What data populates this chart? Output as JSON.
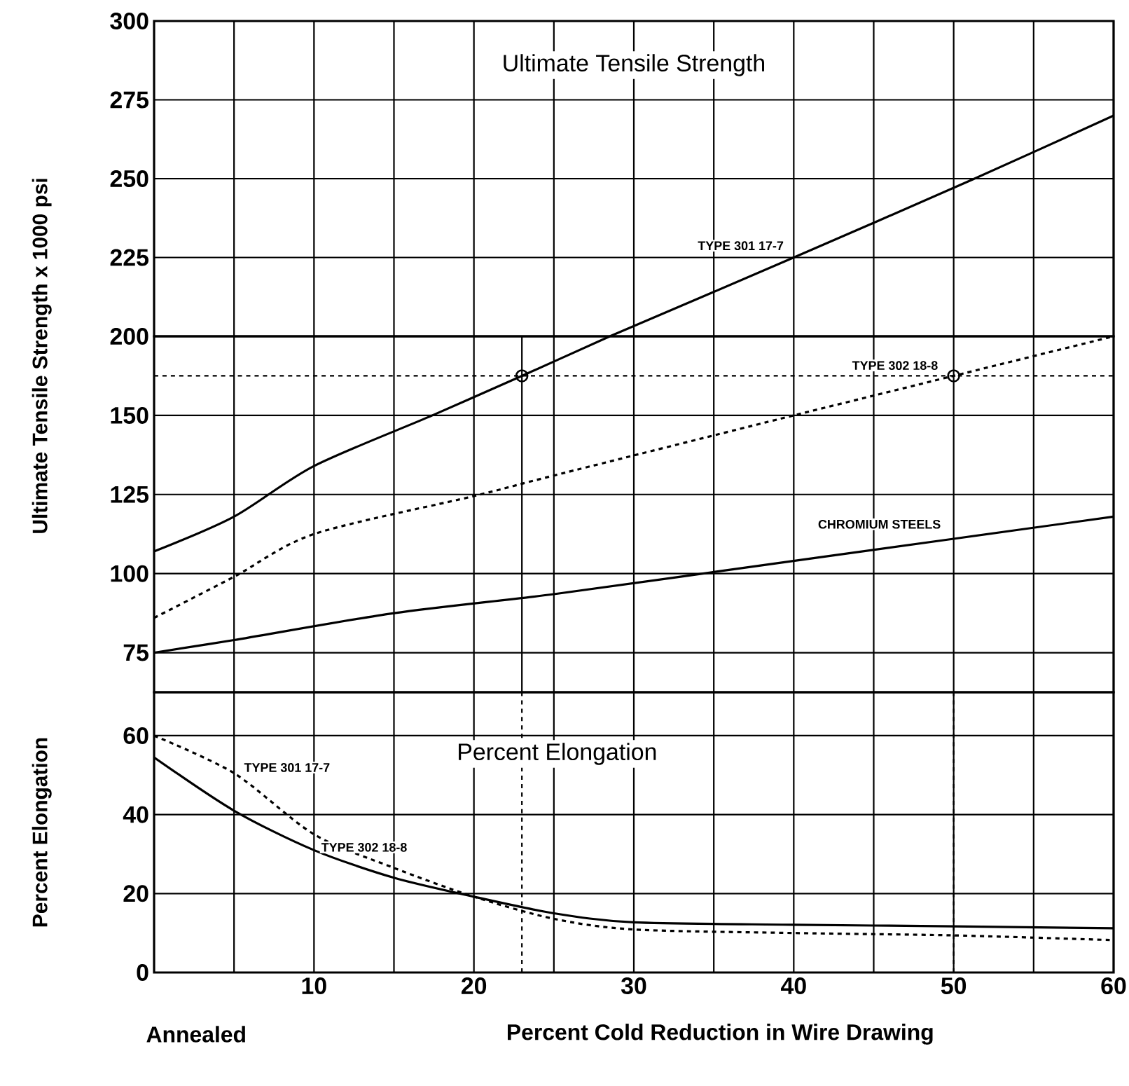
{
  "chart_data": [
    {
      "type": "line",
      "title": "Ultimate Tensile Strength",
      "ylabel": "Ultimate Tensile Strength x 1000 psi",
      "xlim": [
        0,
        60
      ],
      "ylim": [
        200,
        300
      ],
      "xticks": [
        {
          "value": 5,
          "label": null
        },
        10,
        {
          "value": 15,
          "label": null
        },
        20,
        {
          "value": 25,
          "label": null
        },
        30,
        {
          "value": 35,
          "label": null
        },
        40,
        {
          "value": 45,
          "label": null
        },
        50,
        {
          "value": 55,
          "label": null
        },
        60
      ],
      "yticks": [
        200,
        225,
        250,
        275,
        300
      ],
      "grid": true,
      "tick_labels": "y",
      "series": [
        {
          "name": "TYPE 301 17-7",
          "color": "#000000",
          "line_style": "solid",
          "x": [
            28.5,
            40,
            51.3,
            60
          ],
          "values": [
            200,
            225,
            250,
            270
          ]
        }
      ]
    },
    {
      "type": "line",
      "xlim": [
        0,
        60
      ],
      "ylim": [
        62.5,
        175
      ],
      "xticks": [
        {
          "value": 5,
          "label": null
        },
        10,
        {
          "value": 15,
          "label": null
        },
        20,
        {
          "value": 25,
          "label": null
        },
        30,
        {
          "value": 35,
          "label": null
        },
        40,
        {
          "value": 45,
          "label": null
        },
        50,
        {
          "value": 55,
          "label": null
        },
        60
      ],
      "yticks": [
        75,
        100,
        125,
        150
      ],
      "grid": true,
      "tick_labels": "y",
      "series": [
        {
          "color": "#000000",
          "line_style": "solid",
          "x": [
            0,
            5,
            10,
            17.4,
            23,
            28.5
          ],
          "values": [
            107,
            118,
            134,
            150,
            162.5,
            175
          ]
        },
        {
          "name": "TYPE 302 18-8",
          "color": "#000000",
          "line_style": "dashed",
          "x": [
            0,
            5,
            10,
            20,
            25,
            40,
            50,
            60
          ],
          "values": [
            86,
            99,
            112.5,
            124.5,
            131,
            150,
            162.5,
            175
          ]
        },
        {
          "name": "CHROMIUM STEELS",
          "color": "#000000",
          "line_style": "solid",
          "x": [
            0,
            5,
            15,
            25,
            35,
            50,
            60
          ],
          "values": [
            75,
            79,
            87.5,
            93.5,
            100.5,
            111,
            118
          ]
        },
        {
          "type": "scatter",
          "marker": "circle",
          "color": "#000000",
          "x": [
            23,
            50
          ],
          "values": [
            162.5,
            162.5
          ]
        }
      ],
      "ref_lines": [
        {
          "axis": "y",
          "value": 162.5,
          "line_style": "dashed"
        },
        {
          "axis": "x",
          "value": 23,
          "line_style": "solid"
        }
      ]
    },
    {
      "type": "line",
      "title": "Percent Elongation",
      "ylabel": "Percent Elongation",
      "xlabel": "Percent Cold Reduction in Wire Drawing",
      "xlim": [
        0,
        60
      ],
      "ylim": [
        0,
        71
      ],
      "xticks": [
        {
          "value": 5,
          "label": null
        },
        10,
        {
          "value": 15,
          "label": null
        },
        20,
        {
          "value": 25,
          "label": null
        },
        30,
        {
          "value": 35,
          "label": null
        },
        40,
        {
          "value": 45,
          "label": null
        },
        50,
        {
          "value": 55,
          "label": null
        },
        60
      ],
      "yticks": [
        0,
        20,
        40,
        60
      ],
      "grid": true,
      "series": [
        {
          "name": "TYPE 301 17-7",
          "color": "#000000",
          "line_style": "dashed",
          "x": [
            0,
            5,
            10,
            15,
            20,
            25,
            30,
            40,
            50,
            60
          ],
          "values": [
            60,
            50.5,
            35,
            26.5,
            19.2,
            13.6,
            10.9,
            10,
            9.4,
            8.2
          ]
        },
        {
          "name": "TYPE 302 18-8",
          "color": "#000000",
          "line_style": "solid",
          "x": [
            0,
            5,
            10,
            15,
            20,
            25,
            30,
            40,
            50,
            60
          ],
          "values": [
            54.5,
            41,
            31,
            24,
            19.2,
            15,
            12.7,
            12.1,
            11.7,
            11.2
          ]
        }
      ],
      "ref_lines": [
        {
          "axis": "x",
          "value": 23,
          "line_style": "dashed"
        },
        {
          "axis": "x",
          "value": 50,
          "line_style": "dashed"
        }
      ],
      "annotations": [
        "Annealed"
      ]
    }
  ]
}
